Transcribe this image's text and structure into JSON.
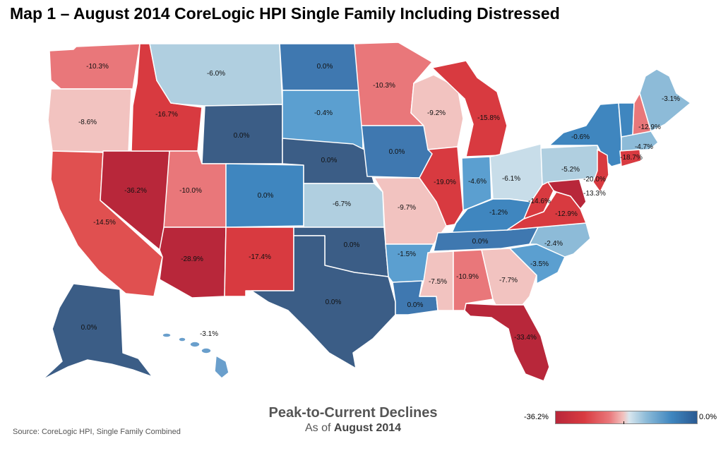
{
  "title": "Map 1 – August 2014 CoreLogic HPI Single Family Including Distressed",
  "caption": {
    "title": "Peak-to-Current Declines",
    "sub_prefix": "As of",
    "sub_date": "August 2014"
  },
  "source": "Source: CoreLogic HPI, Single Family Combined",
  "legend": {
    "min": "-36.2%",
    "max": "0.0%"
  },
  "states": {
    "WA": {
      "value": "-10.3%",
      "color": "#e9777a"
    },
    "OR": {
      "value": "-8.6%",
      "color": "#f2c3c0"
    },
    "CA": {
      "value": "-14.5%",
      "color": "#e05050"
    },
    "NV": {
      "value": "-36.2%",
      "color": "#b8273a"
    },
    "ID": {
      "value": "-16.7%",
      "color": "#d83a40"
    },
    "MT": {
      "value": "-6.0%",
      "color": "#b0cfe0"
    },
    "WY": {
      "value": "0.0%",
      "color": "#3b5d86"
    },
    "UT": {
      "value": "-10.0%",
      "color": "#e9777a"
    },
    "AZ": {
      "value": "-28.9%",
      "color": "#b8273a"
    },
    "CO": {
      "value": "0.0%",
      "color": "#3f86bf"
    },
    "NM": {
      "value": "-17.4%",
      "color": "#d83a40"
    },
    "ND": {
      "value": "0.0%",
      "color": "#3f78b0"
    },
    "SD": {
      "value": "-0.4%",
      "color": "#5b9fd0"
    },
    "NE": {
      "value": "0.0%",
      "color": "#3b5d86"
    },
    "KS": {
      "value": "-6.7%",
      "color": "#b0cfe0"
    },
    "OK": {
      "value": "0.0%",
      "color": "#3b5d86"
    },
    "TX": {
      "value": "0.0%",
      "color": "#3b5d86"
    },
    "MN": {
      "value": "-10.3%",
      "color": "#e9777a"
    },
    "IA": {
      "value": "0.0%",
      "color": "#3f78b0"
    },
    "MO": {
      "value": "-9.7%",
      "color": "#f2c3c0"
    },
    "AR": {
      "value": "-1.5%",
      "color": "#5b9fd0"
    },
    "LA": {
      "value": "0.0%",
      "color": "#3f78b0"
    },
    "WI": {
      "value": "-9.2%",
      "color": "#f2c3c0"
    },
    "IL": {
      "value": "-19.0%",
      "color": "#d83a40"
    },
    "MI": {
      "value": "-15.8%",
      "color": "#d83a40"
    },
    "IN": {
      "value": "-4.6%",
      "color": "#5b9fd0"
    },
    "OH": {
      "value": "-6.1%",
      "color": "#c8dde9"
    },
    "KY": {
      "value": "-1.2%",
      "color": "#3f86bf"
    },
    "TN": {
      "value": "0.0%",
      "color": "#3f78b0"
    },
    "MS": {
      "value": "-7.5%",
      "color": "#f2c3c0"
    },
    "AL": {
      "value": "-10.9%",
      "color": "#e9777a"
    },
    "GA": {
      "value": "-7.7%",
      "color": "#f2c3c0"
    },
    "FL": {
      "value": "-33.4%",
      "color": "#b8273a"
    },
    "SC": {
      "value": "-3.5%",
      "color": "#5b9fd0"
    },
    "NC": {
      "value": "-2.4%",
      "color": "#8dbbd8"
    },
    "VA": {
      "value": "-12.9%",
      "color": "#d83a40"
    },
    "WV": {
      "value": "-14.6%",
      "color": "#d83a40"
    },
    "PA": {
      "value": "-5.2%",
      "color": "#b0cfe0"
    },
    "NY": {
      "value": "-0.6%",
      "color": "#3f86bf"
    },
    "MD": {
      "value": "-13.3%",
      "color": "#b8273a"
    },
    "NJ": {
      "value": "-20.0%",
      "color": "#d83a40"
    },
    "CT": {
      "value": "-18.7%",
      "color": "#d83a40"
    },
    "MA": {
      "value": "-4.7%",
      "color": "#8dbbd8"
    },
    "NH": {
      "value": "-12.9%",
      "color": "#e9777a"
    },
    "VT": {
      "value": "",
      "color": "#3f86bf"
    },
    "ME": {
      "value": "-3.1%",
      "color": "#8dbbd8"
    },
    "AK": {
      "value": "0.0%",
      "color": "#3b5d86"
    },
    "HI": {
      "value": "-3.1%",
      "color": "#6a9fcc"
    }
  }
}
